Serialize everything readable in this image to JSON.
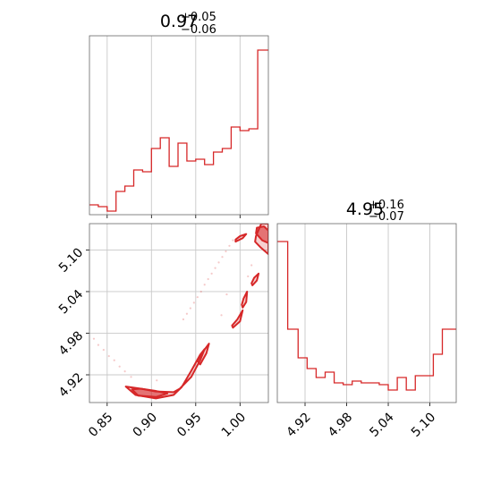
{
  "chart_data": {
    "type": "corner",
    "color": "#d62728",
    "grid": true,
    "panels": [
      {
        "id": "hist_x",
        "type": "histogram",
        "title": {
          "main": "0.97",
          "sup": "+0.05",
          "sub": "−0.06"
        },
        "xlim": [
          0.83,
          1.032
        ],
        "ylim": [
          0,
          1.0
        ],
        "xgrid": [
          0.85,
          0.9,
          0.95,
          1.0
        ],
        "bin_edges": [
          0.83,
          0.84,
          0.85,
          0.86,
          0.87,
          0.88,
          0.89,
          0.9,
          0.91,
          0.92,
          0.93,
          0.94,
          0.95,
          0.96,
          0.97,
          0.98,
          0.99,
          1.0,
          1.01,
          1.02,
          1.032
        ],
        "counts": [
          0.055,
          0.045,
          0.02,
          0.13,
          0.16,
          0.25,
          0.24,
          0.37,
          0.43,
          0.27,
          0.4,
          0.3,
          0.31,
          0.28,
          0.35,
          0.37,
          0.49,
          0.47,
          0.48,
          0.92
        ]
      },
      {
        "id": "hist_y",
        "type": "histogram",
        "title": {
          "main": "4.95",
          "sup": "+0.16",
          "sub": "−0.07"
        },
        "xlim": [
          4.88,
          5.138
        ],
        "ylim": [
          0,
          1.0
        ],
        "xticks": [
          "4.92",
          "4.98",
          "5.04",
          "5.10"
        ],
        "xtick_values": [
          4.92,
          4.98,
          5.04,
          5.1
        ],
        "bin_edges": [
          4.88,
          4.895,
          4.91,
          4.923,
          4.936,
          4.949,
          4.962,
          4.975,
          4.988,
          5.001,
          5.014,
          5.027,
          5.04,
          5.053,
          5.066,
          5.079,
          5.092,
          5.105,
          5.118,
          5.138
        ],
        "counts": [
          0.9,
          0.41,
          0.25,
          0.19,
          0.14,
          0.17,
          0.11,
          0.1,
          0.12,
          0.11,
          0.11,
          0.1,
          0.07,
          0.14,
          0.07,
          0.15,
          0.15,
          0.27,
          0.41
        ]
      },
      {
        "id": "contour_xy",
        "type": "contour2d",
        "xlim": [
          0.83,
          1.032
        ],
        "ylim": [
          4.88,
          5.138
        ],
        "xticks": [
          "0.85",
          "0.90",
          "0.95",
          "1.00"
        ],
        "xtick_values": [
          0.85,
          0.9,
          0.95,
          1.0
        ],
        "yticks": [
          "4.92",
          "4.98",
          "5.04",
          "5.10"
        ],
        "ytick_values": [
          4.92,
          4.98,
          5.04,
          5.1
        ],
        "regions": [
          {
            "level": "inner",
            "points": [
              [
                0.878,
                4.899
              ],
              [
                0.885,
                4.89
              ],
              [
                0.905,
                4.888
              ],
              [
                0.918,
                4.893
              ],
              [
                0.904,
                4.897
              ],
              [
                0.888,
                4.9
              ]
            ]
          },
          {
            "level": "inner",
            "points": [
              [
                1.019,
                5.132
              ],
              [
                1.027,
                5.134
              ],
              [
                1.032,
                5.128
              ],
              [
                1.032,
                5.11
              ],
              [
                1.025,
                5.114
              ],
              [
                1.018,
                5.124
              ]
            ]
          },
          {
            "level": "outer",
            "points": [
              [
                0.871,
                4.903
              ],
              [
                0.882,
                4.891
              ],
              [
                0.905,
                4.886
              ],
              [
                0.925,
                4.891
              ],
              [
                0.934,
                4.902
              ],
              [
                0.945,
                4.926
              ],
              [
                0.955,
                4.949
              ],
              [
                0.96,
                4.957
              ],
              [
                0.955,
                4.941
              ],
              [
                0.945,
                4.917
              ],
              [
                0.932,
                4.9
              ],
              [
                0.925,
                4.895
              ],
              [
                0.905,
                4.896
              ],
              [
                0.888,
                4.9
              ]
            ]
          },
          {
            "level": "outer",
            "points": [
              [
                0.955,
                4.935
              ],
              [
                0.962,
                4.951
              ],
              [
                0.965,
                4.965
              ],
              [
                0.958,
                4.953
              ],
              [
                0.952,
                4.94
              ]
            ]
          },
          {
            "level": "outer",
            "points": [
              [
                0.992,
                4.988
              ],
              [
                1.0,
                4.997
              ],
              [
                1.003,
                5.013
              ],
              [
                0.997,
                5.0
              ],
              [
                0.991,
                4.991
              ]
            ]
          },
          {
            "level": "outer",
            "points": [
              [
                1.003,
                5.017
              ],
              [
                1.007,
                5.025
              ],
              [
                1.008,
                5.04
              ],
              [
                1.004,
                5.03
              ],
              [
                1.002,
                5.021
              ]
            ]
          },
          {
            "level": "outer",
            "points": [
              [
                1.014,
                5.049
              ],
              [
                1.019,
                5.056
              ],
              [
                1.021,
                5.066
              ],
              [
                1.016,
                5.06
              ],
              [
                1.013,
                5.052
              ]
            ]
          },
          {
            "level": "outer",
            "points": [
              [
                0.995,
                5.112
              ],
              [
                1.003,
                5.117
              ],
              [
                1.007,
                5.123
              ],
              [
                1.0,
                5.12
              ],
              [
                0.995,
                5.115
              ]
            ]
          },
          {
            "level": "outer",
            "points": [
              [
                1.018,
                5.12
              ],
              [
                1.024,
                5.138
              ],
              [
                1.032,
                5.138
              ],
              [
                1.032,
                5.094
              ],
              [
                1.023,
                5.104
              ],
              [
                1.017,
                5.112
              ]
            ]
          }
        ],
        "scatter": [
          [
            0.835,
            4.972
          ],
          [
            0.84,
            4.963
          ],
          [
            0.846,
            4.956
          ],
          [
            0.852,
            4.947
          ],
          [
            0.858,
            4.941
          ],
          [
            0.864,
            4.932
          ],
          [
            0.87,
            4.925
          ],
          [
            0.877,
            4.917
          ],
          [
            0.906,
            4.912
          ],
          [
            0.936,
            5.0
          ],
          [
            0.94,
            5.008
          ],
          [
            0.944,
            5.016
          ],
          [
            0.948,
            5.024
          ],
          [
            0.952,
            5.032
          ],
          [
            0.956,
            5.04
          ],
          [
            0.96,
            5.05
          ],
          [
            0.964,
            5.058
          ],
          [
            0.968,
            5.066
          ],
          [
            0.972,
            5.074
          ],
          [
            0.976,
            5.082
          ],
          [
            0.98,
            5.09
          ],
          [
            0.984,
            5.098
          ],
          [
            0.988,
            5.106
          ],
          [
            0.992,
            5.114
          ],
          [
            1.009,
            5.062
          ],
          [
            1.013,
            5.078
          ],
          [
            0.985,
            5.036
          ],
          [
            0.979,
            5.006
          ]
        ]
      }
    ]
  }
}
